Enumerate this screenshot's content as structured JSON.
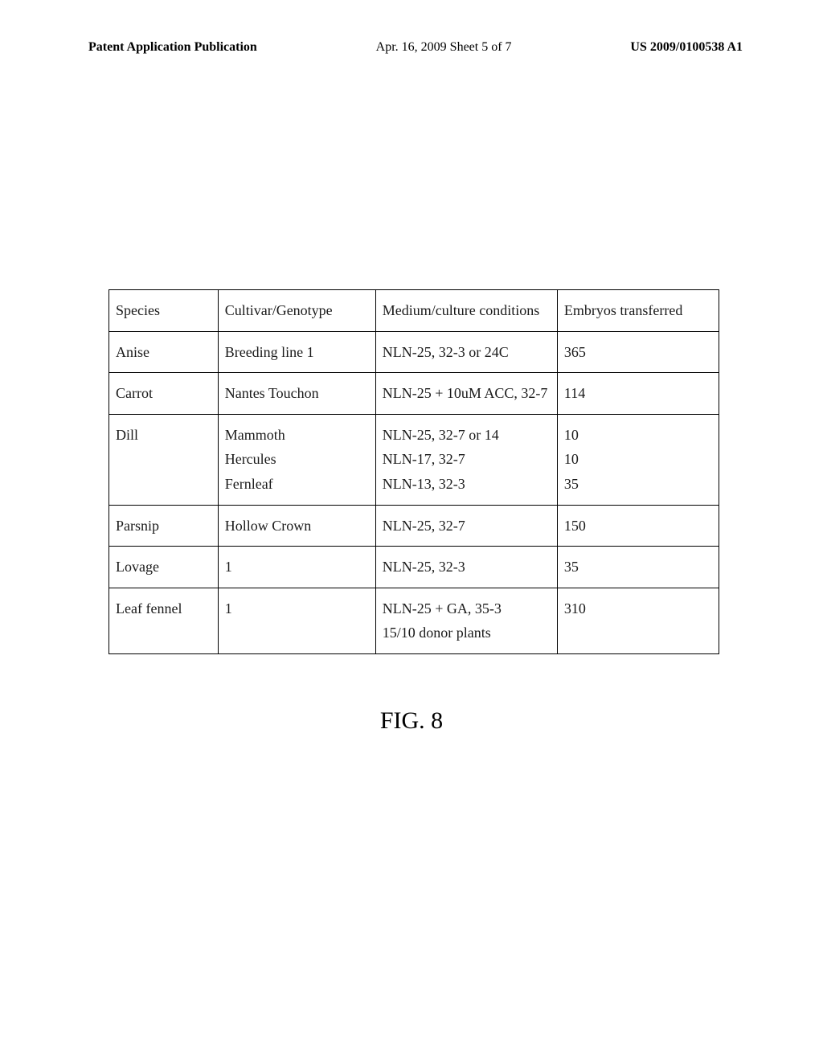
{
  "header": {
    "left": "Patent Application Publication",
    "center": "Apr. 16, 2009  Sheet 5 of 7",
    "right": "US 2009/0100538 A1"
  },
  "table": {
    "columns": [
      "Species",
      "Cultivar/Genotype",
      "Medium/culture conditions",
      "Embryos transferred"
    ],
    "rows": [
      {
        "species": "Anise",
        "cultivar": "Breeding line 1",
        "medium": "NLN-25, 32-3 or 24C",
        "embryos": "365"
      },
      {
        "species": "Carrot",
        "cultivar": "Nantes Touchon",
        "medium": "NLN-25 + 10uM ACC, 32-7",
        "embryos": "114"
      },
      {
        "species": "Dill",
        "cultivar": "Mammoth\nHercules\nFernleaf",
        "medium": "NLN-25, 32-7 or 14\nNLN-17, 32-7\nNLN-13, 32-3",
        "embryos": "10\n10\n35"
      },
      {
        "species": "Parsnip",
        "cultivar": "Hollow Crown",
        "medium": "NLN-25, 32-7",
        "embryos": "150"
      },
      {
        "species": "Lovage",
        "cultivar": "1",
        "medium": "NLN-25, 32-3",
        "embryos": "35"
      },
      {
        "species": "Leaf fennel",
        "cultivar": "1",
        "medium": "NLN-25 + GA, 35-3\n15/10 donor plants",
        "embryos": "310"
      }
    ]
  },
  "figure_label": "FIG. 8"
}
